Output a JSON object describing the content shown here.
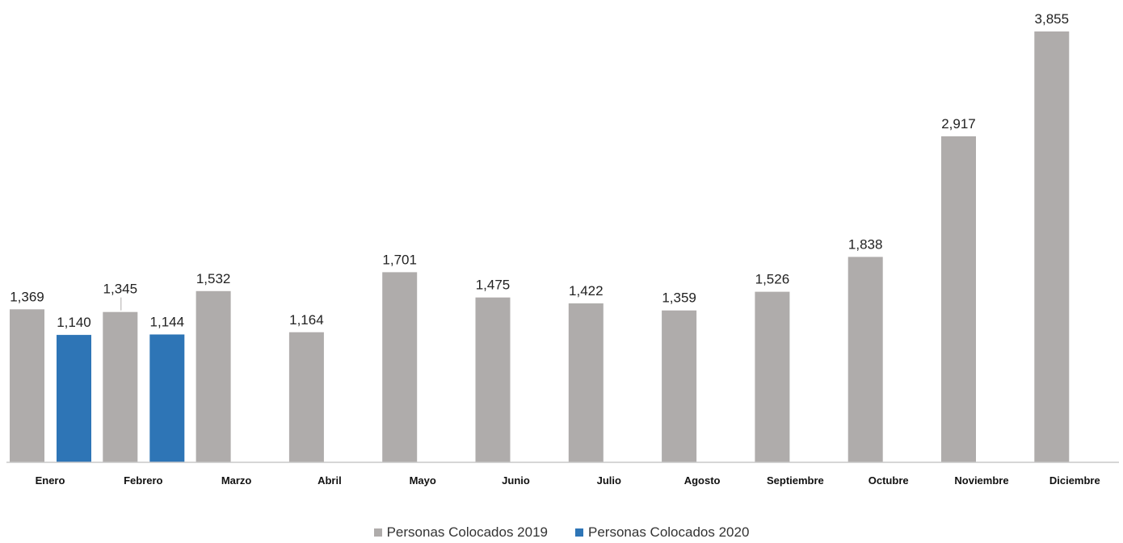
{
  "chart_data": {
    "type": "bar",
    "categories": [
      "Enero",
      "Febrero",
      "Marzo",
      "Abril",
      "Mayo",
      "Junio",
      "Julio",
      "Agosto",
      "Septiembre",
      "Octubre",
      "Noviembre",
      "Diciembre"
    ],
    "series": [
      {
        "name": "Personas Colocados 2019",
        "color": "#AFACAB",
        "values": [
          1369,
          1345,
          1532,
          1164,
          1701,
          1475,
          1422,
          1359,
          1526,
          1838,
          2917,
          3855
        ],
        "labels": [
          "1,369",
          "1,345",
          "1,532",
          "1,164",
          "1,701",
          "1,475",
          "1,422",
          "1,359",
          "1,526",
          "1,838",
          "2,917",
          "3,855"
        ]
      },
      {
        "name": "Personas Colocados 2020",
        "color": "#2E75B6",
        "values": [
          1140,
          1144,
          null,
          null,
          null,
          null,
          null,
          null,
          null,
          null,
          null,
          null
        ],
        "labels": [
          "1,140",
          "1,144",
          "",
          "",
          "",
          "",
          "",
          "",
          "",
          "",
          "",
          ""
        ]
      }
    ],
    "ylim": [
      0,
      4000
    ],
    "grid": false,
    "legend_position": "bottom"
  }
}
